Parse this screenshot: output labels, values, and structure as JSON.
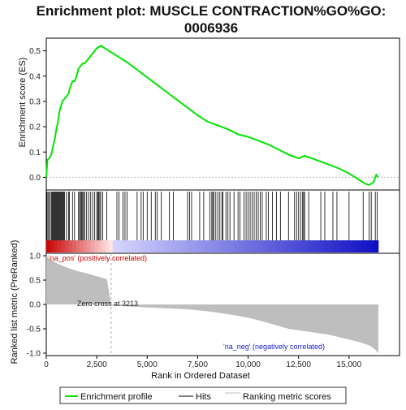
{
  "chart_data": {
    "type": "line",
    "title_line1": "Enrichment plot: MUSCLE CONTRACTION%GO%GO:",
    "title_line2": "0006936",
    "es_panel": {
      "ylabel": "Enrichment score (ES)",
      "ylim": [
        -0.05,
        0.55
      ],
      "yticks": [
        "0.0",
        "0.1",
        "0.2",
        "0.3",
        "0.4",
        "0.5"
      ],
      "ytick_values": [
        0.0,
        0.1,
        0.2,
        0.3,
        0.4,
        0.5
      ],
      "line_color": "#00e600",
      "series": {
        "name": "Enrichment profile",
        "x": [
          0,
          60,
          150,
          250,
          330,
          420,
          500,
          580,
          650,
          720,
          800,
          900,
          1000,
          1100,
          1200,
          1300,
          1400,
          1500,
          1600,
          1700,
          1800,
          1900,
          2000,
          2100,
          2200,
          2300,
          2400,
          2500,
          2600,
          2700,
          2800,
          3000,
          3500,
          4000,
          4500,
          5000,
          5500,
          6000,
          6500,
          7000,
          7500,
          8000,
          8500,
          9000,
          9500,
          10000,
          10500,
          11000,
          11500,
          12000,
          12500,
          12800,
          13000,
          13500,
          14000,
          14500,
          15000,
          15500,
          15800,
          16000,
          16200,
          16350,
          16450
        ],
        "y": [
          0.0,
          0.07,
          0.075,
          0.09,
          0.12,
          0.15,
          0.19,
          0.22,
          0.26,
          0.28,
          0.3,
          0.31,
          0.32,
          0.33,
          0.36,
          0.38,
          0.38,
          0.4,
          0.43,
          0.44,
          0.45,
          0.45,
          0.46,
          0.47,
          0.48,
          0.49,
          0.5,
          0.51,
          0.515,
          0.52,
          0.515,
          0.505,
          0.48,
          0.455,
          0.425,
          0.395,
          0.365,
          0.335,
          0.305,
          0.275,
          0.245,
          0.22,
          0.205,
          0.19,
          0.17,
          0.16,
          0.145,
          0.13,
          0.11,
          0.09,
          0.075,
          0.085,
          0.08,
          0.065,
          0.05,
          0.035,
          0.015,
          -0.01,
          -0.025,
          -0.03,
          -0.02,
          0.01,
          0.0
        ]
      }
    },
    "hits": [
      30,
      80,
      130,
      200,
      260,
      300,
      340,
      380,
      420,
      460,
      500,
      540,
      580,
      620,
      660,
      700,
      740,
      780,
      820,
      860,
      900,
      1000,
      1100,
      1150,
      1300,
      1400,
      1600,
      1650,
      1700,
      1750,
      1800,
      1850,
      1900,
      2000,
      2100,
      2200,
      2300,
      2400,
      2500,
      2550,
      2600,
      2650,
      2700,
      2800,
      3000,
      3500,
      3600,
      3800,
      3900,
      4000,
      4500,
      4700,
      4800,
      5000,
      5200,
      5400,
      5500,
      5700,
      6100,
      6300,
      7000,
      7100,
      7200,
      7600,
      7800,
      8100,
      8200,
      8250,
      8300,
      8400,
      8500,
      8600,
      8700,
      8750,
      8900,
      9000,
      9100,
      9300,
      9500,
      9600,
      9800,
      9900,
      10000,
      10100,
      10200,
      10300,
      10400,
      10500,
      10600,
      10700,
      10900,
      11000,
      11200,
      11400,
      11600,
      12000,
      12300,
      12400,
      12500,
      12600,
      12700,
      12750,
      12800,
      13000,
      13600,
      13800,
      14200,
      14400,
      15000,
      15700,
      16000,
      16100,
      16300,
      16400
    ],
    "metric_panel": {
      "ylabel": "Ranked list metric (PreRanked)",
      "ylim": [
        -1.05,
        1.05
      ],
      "yticks": [
        "1.0",
        "0.5",
        "0.0",
        "-0.5",
        "-1.0"
      ],
      "ytick_values": [
        1.0,
        0.5,
        0.0,
        -0.5,
        -1.0
      ],
      "fill_color": "#bebebe",
      "x": [
        0,
        200,
        500,
        1000,
        1500,
        2000,
        2500,
        3000,
        3213,
        3300,
        4000,
        5000,
        6000,
        7000,
        8000,
        9000,
        10000,
        11000,
        12000,
        13000,
        14000,
        15000,
        15500,
        16000,
        16300,
        16450
      ],
      "values": [
        1.0,
        0.93,
        0.85,
        0.76,
        0.69,
        0.64,
        0.58,
        0.52,
        0.0,
        -0.02,
        -0.04,
        -0.06,
        -0.08,
        -0.1,
        -0.14,
        -0.2,
        -0.27,
        -0.38,
        -0.5,
        -0.56,
        -0.62,
        -0.72,
        -0.77,
        -0.84,
        -0.93,
        -1.0
      ],
      "annotation_pos": "'na_pos' (positively correlated)",
      "annotation_neg": "'na_neg' (negatively correlated)",
      "zero_cross_label": "Zero cross at 3213",
      "zero_cross": 3213,
      "pos_color": "#cc0000",
      "neg_color": "#1a1acc"
    },
    "xaxis": {
      "label": "Rank in Ordered Dataset",
      "xlim": [
        0,
        16450
      ],
      "display_max": 17500,
      "ticks": [
        "0",
        "2,500",
        "5,000",
        "7,500",
        "10,000",
        "12,500",
        "15,000"
      ],
      "tick_values": [
        0,
        2500,
        5000,
        7500,
        10000,
        12500,
        15000
      ]
    },
    "legend": [
      {
        "label": "Enrichment profile",
        "color": "#00e600"
      },
      {
        "label": "Hits",
        "color": "#000000"
      },
      {
        "label": "Ranking metric scores",
        "color": "#bebebe"
      }
    ]
  }
}
